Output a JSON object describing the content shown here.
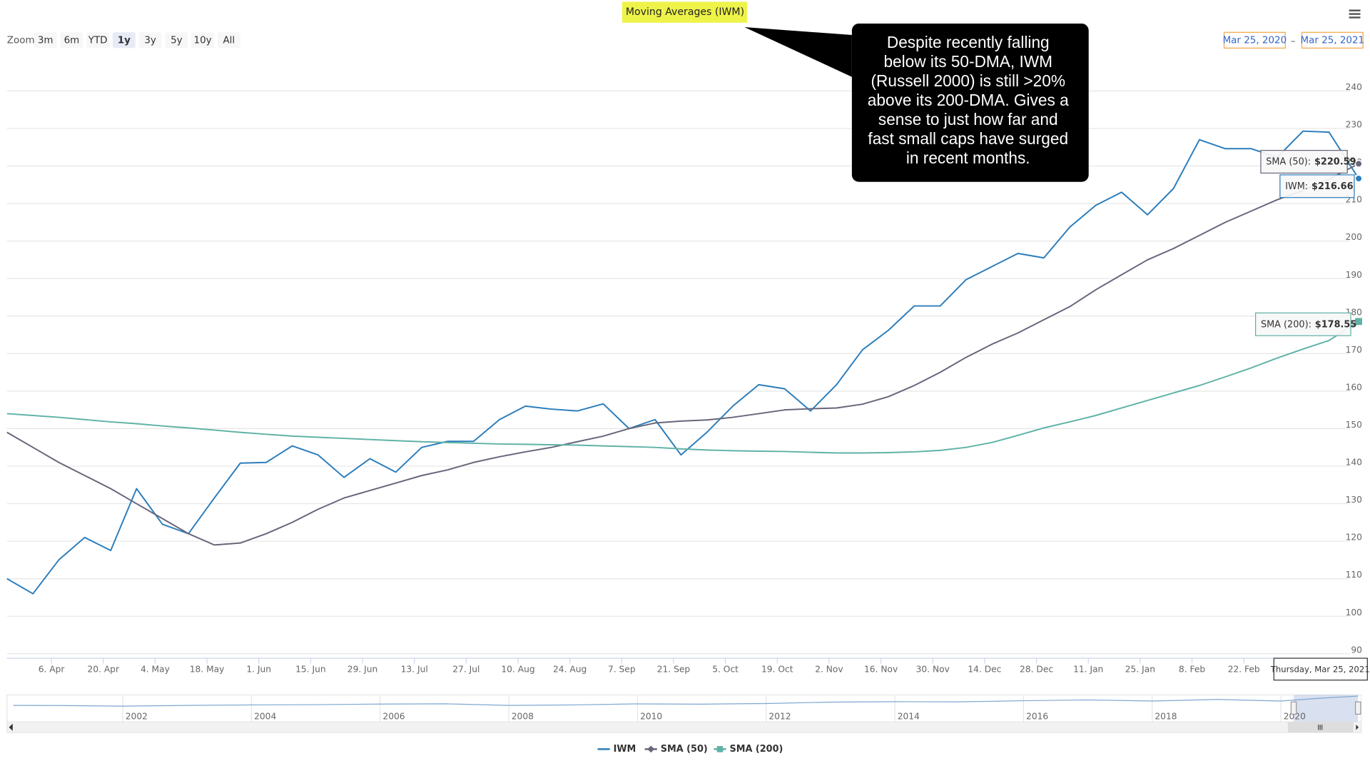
{
  "toolbar": {
    "zoom_label": "Zoom",
    "buttons": [
      "3m",
      "6m",
      "YTD",
      "1y",
      "3y",
      "5y",
      "10y",
      "All"
    ],
    "selected_index": 3,
    "range_from": "Mar 25, 2020",
    "range_separator": "–",
    "range_to": "Mar 25, 2021"
  },
  "annotation": {
    "lines": [
      "Despite recently falling",
      "below its 50-DMA, IWM",
      "(Russell 2000) is still >20%",
      "above its 200-DMA. Gives a",
      "sense to just how far and",
      "fast small caps have surged",
      "in recent months."
    ]
  },
  "chart_data": {
    "type": "line",
    "title": "Moving Averages (IWM)",
    "x": [
      "2020-03-25",
      "2020-04-01",
      "2020-04-08",
      "2020-04-15",
      "2020-04-22",
      "2020-04-29",
      "2020-05-06",
      "2020-05-13",
      "2020-05-20",
      "2020-05-27",
      "2020-06-03",
      "2020-06-10",
      "2020-06-17",
      "2020-06-24",
      "2020-07-01",
      "2020-07-08",
      "2020-07-15",
      "2020-07-22",
      "2020-07-29",
      "2020-08-05",
      "2020-08-12",
      "2020-08-19",
      "2020-08-26",
      "2020-09-02",
      "2020-09-09",
      "2020-09-16",
      "2020-09-23",
      "2020-09-30",
      "2020-10-07",
      "2020-10-14",
      "2020-10-21",
      "2020-10-28",
      "2020-11-04",
      "2020-11-11",
      "2020-11-18",
      "2020-11-25",
      "2020-12-02",
      "2020-12-09",
      "2020-12-16",
      "2020-12-23",
      "2020-12-30",
      "2021-01-06",
      "2021-01-13",
      "2021-01-20",
      "2021-01-27",
      "2021-02-03",
      "2021-02-10",
      "2021-02-17",
      "2021-02-24",
      "2021-03-03",
      "2021-03-10",
      "2021-03-17",
      "2021-03-25"
    ],
    "series": [
      {
        "name": "IWM",
        "color": "#2b7dbc",
        "values": [
          110,
          106,
          115,
          121,
          117.5,
          134,
          124.5,
          122,
          131.5,
          140.8,
          141,
          145.4,
          143,
          137,
          142,
          138.4,
          145,
          146.6,
          146.6,
          152.4,
          156,
          155.2,
          154.7,
          156.6,
          150,
          152.4,
          143,
          149,
          156,
          161.7,
          160.6,
          154.7,
          161.7,
          171,
          176.2,
          182.7,
          182.7,
          189.7,
          193.2,
          196.7,
          195.5,
          203.7,
          209.5,
          213,
          207,
          214,
          227,
          224.6,
          224.6,
          222.3,
          229.3,
          229,
          216.66
        ]
      },
      {
        "name": "SMA (50)",
        "color": "#67667a",
        "values": [
          149,
          145,
          141,
          137.5,
          134,
          130,
          126,
          122,
          119,
          119.5,
          122,
          125,
          128.5,
          131.5,
          133.5,
          135.5,
          137.5,
          139,
          141,
          142.5,
          143.8,
          145,
          146.5,
          148,
          150,
          151.5,
          152,
          152.3,
          153,
          154,
          155,
          155.3,
          155.5,
          156.5,
          158.5,
          161.5,
          165,
          169,
          172.5,
          175.5,
          179,
          182.5,
          187,
          191,
          195,
          198,
          201.5,
          205,
          208,
          211,
          213.5,
          216.5,
          220.59
        ]
      },
      {
        "name": "SMA (200)",
        "color": "#5fb2a6",
        "values": [
          154,
          153.5,
          153,
          152.4,
          151.8,
          151.3,
          150.7,
          150.2,
          149.6,
          149,
          148.5,
          148,
          147.7,
          147.4,
          147.1,
          146.8,
          146.5,
          146.3,
          146.1,
          145.9,
          145.8,
          145.7,
          145.6,
          145.4,
          145.2,
          145,
          144.6,
          144.3,
          144.1,
          144,
          143.9,
          143.7,
          143.5,
          143.5,
          143.6,
          143.8,
          144.2,
          145,
          146.3,
          148.2,
          150.2,
          151.8,
          153.5,
          155.5,
          157.5,
          159.5,
          161.5,
          163.8,
          166.2,
          168.8,
          171.2,
          173.5,
          178.55
        ]
      }
    ],
    "xlim": [
      "2020-03-25",
      "2021-03-25"
    ],
    "xticks": [
      {
        "value": "2020-04-06",
        "label": "6. Apr"
      },
      {
        "value": "2020-04-20",
        "label": "20. Apr"
      },
      {
        "value": "2020-05-04",
        "label": "4. May"
      },
      {
        "value": "2020-05-18",
        "label": "18. May"
      },
      {
        "value": "2020-06-01",
        "label": "1. Jun"
      },
      {
        "value": "2020-06-15",
        "label": "15. Jun"
      },
      {
        "value": "2020-06-29",
        "label": "29. Jun"
      },
      {
        "value": "2020-07-13",
        "label": "13. Jul"
      },
      {
        "value": "2020-07-27",
        "label": "27. Jul"
      },
      {
        "value": "2020-08-10",
        "label": "10. Aug"
      },
      {
        "value": "2020-08-24",
        "label": "24. Aug"
      },
      {
        "value": "2020-09-07",
        "label": "7. Sep"
      },
      {
        "value": "2020-09-21",
        "label": "21. Sep"
      },
      {
        "value": "2020-10-05",
        "label": "5. Oct"
      },
      {
        "value": "2020-10-19",
        "label": "19. Oct"
      },
      {
        "value": "2020-11-02",
        "label": "2. Nov"
      },
      {
        "value": "2020-11-16",
        "label": "16. Nov"
      },
      {
        "value": "2020-11-30",
        "label": "30. Nov"
      },
      {
        "value": "2020-12-14",
        "label": "14. Dec"
      },
      {
        "value": "2020-12-28",
        "label": "28. Dec"
      },
      {
        "value": "2021-01-11",
        "label": "11. Jan"
      },
      {
        "value": "2021-01-25",
        "label": "25. Jan"
      },
      {
        "value": "2021-02-08",
        "label": "8. Feb"
      },
      {
        "value": "2021-02-22",
        "label": "22. Feb"
      }
    ],
    "ylim": [
      88.8,
      249
    ],
    "yticks": [
      90,
      100,
      110,
      120,
      130,
      140,
      150,
      160,
      170,
      180,
      190,
      200,
      210,
      220,
      230,
      240
    ],
    "grid": true,
    "legend": "bottom",
    "crosshair_label": "Thursday, Mar 25, 2021",
    "tooltips": [
      {
        "label": "SMA (50):",
        "text": "$220.59"
      },
      {
        "label": "IWM:",
        "text": "$216.66"
      },
      {
        "label": "SMA (200):",
        "text": "$178.55"
      }
    ],
    "navigator": {
      "x": [
        2000.3,
        2001,
        2002,
        2003,
        2004,
        2005,
        2006,
        2007,
        2008,
        2009,
        2010,
        2011,
        2012,
        2013,
        2014,
        2015,
        2016,
        2017,
        2018,
        2019,
        2020,
        2020.6,
        2021.2
      ],
      "values": [
        50,
        48,
        38,
        50,
        60,
        65,
        75,
        80,
        50,
        60,
        78,
        74,
        85,
        110,
        118,
        115,
        135,
        150,
        130,
        160,
        130,
        180,
        220
      ],
      "color": "#7ea6cf",
      "xlim": [
        2000.2,
        2021.25
      ],
      "ylim": [
        -250,
        240
      ],
      "xticks": [
        2002,
        2004,
        2006,
        2008,
        2010,
        2012,
        2014,
        2016,
        2018,
        2020
      ],
      "selected": [
        2020.2,
        2021.2
      ]
    }
  }
}
